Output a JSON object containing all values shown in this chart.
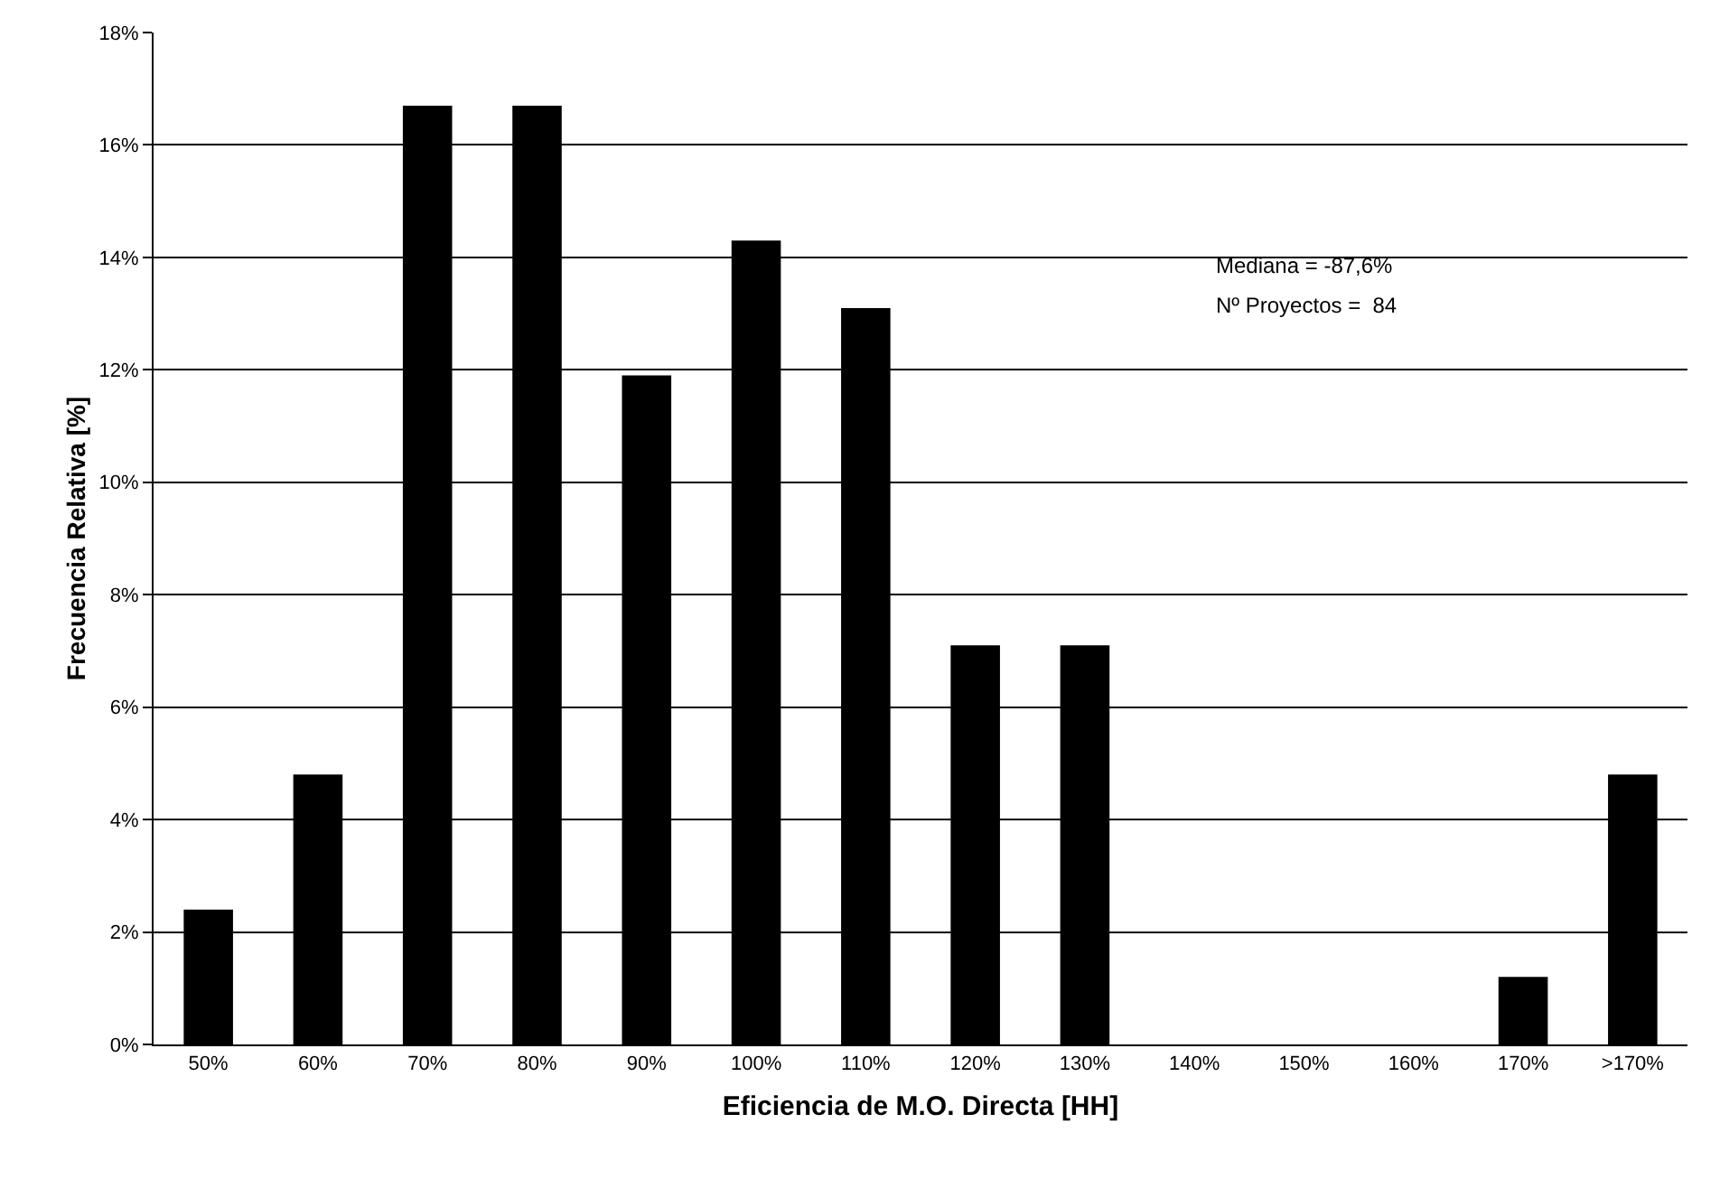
{
  "chart_data": {
    "type": "bar",
    "xlabel": "Eficiencia de M.O. Directa [HH]",
    "ylabel": "Frecuencia Relativa [%]",
    "categories": [
      "50%",
      "60%",
      "70%",
      "80%",
      "90%",
      "100%",
      "110%",
      "120%",
      "130%",
      "140%",
      "150%",
      "160%",
      "170%",
      ">170%"
    ],
    "values": [
      2.4,
      4.8,
      16.7,
      16.7,
      11.9,
      14.3,
      13.1,
      7.1,
      7.1,
      0,
      0,
      0,
      1.2,
      4.8
    ],
    "color": "#000000",
    "ylim": [
      0,
      18
    ],
    "yticks": [
      {
        "value": 0,
        "label": "0%"
      },
      {
        "value": 2,
        "label": "2%"
      },
      {
        "value": 4,
        "label": "4%"
      },
      {
        "value": 6,
        "label": "6%"
      },
      {
        "value": 8,
        "label": "8%"
      },
      {
        "value": 10,
        "label": "10%"
      },
      {
        "value": 12,
        "label": "12%"
      },
      {
        "value": 14,
        "label": "14%"
      },
      {
        "value": 16,
        "label": "16%"
      },
      {
        "value": 18,
        "label": "18%"
      }
    ],
    "grid": "y",
    "annotations": [
      "Mediana = -87,6%",
      "Nº Proyectos =  84"
    ]
  }
}
